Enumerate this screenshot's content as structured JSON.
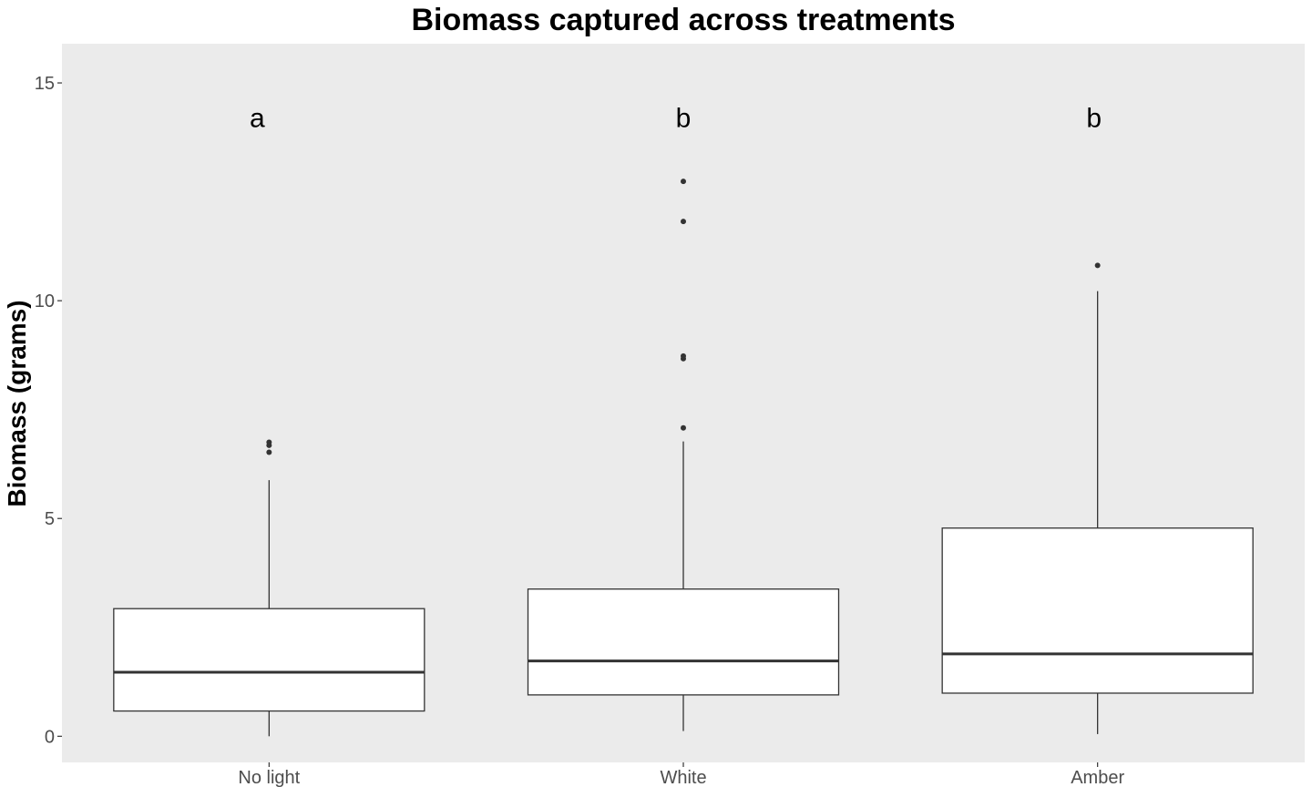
{
  "chart_data": {
    "type": "box",
    "title": "Biomass captured across treatments",
    "xlabel": "",
    "ylabel": "Biomass (grams)",
    "ylim": [
      -0.6,
      15.9
    ],
    "yticks": [
      0,
      5,
      10,
      15
    ],
    "grid": false,
    "panel_color": "#ebebeb",
    "box_fill": "#ffffff",
    "line_color": "#333333",
    "categories": [
      "No light",
      "White",
      "Amber"
    ],
    "boxes": [
      {
        "category": "No light",
        "whisker_low": 0.0,
        "q1": 0.58,
        "median": 1.47,
        "q3": 2.93,
        "whisker_high": 5.88,
        "outliers": [
          6.52,
          6.68,
          6.75
        ],
        "letter": "a"
      },
      {
        "category": "White",
        "whisker_low": 0.12,
        "q1": 0.95,
        "median": 1.73,
        "q3": 3.38,
        "whisker_high": 6.77,
        "outliers": [
          7.08,
          8.67,
          8.73,
          11.82,
          12.74
        ],
        "letter": "b"
      },
      {
        "category": "Amber",
        "whisker_low": 0.05,
        "q1": 0.99,
        "median": 1.89,
        "q3": 4.78,
        "whisker_high": 10.22,
        "outliers": [
          10.81
        ],
        "letter": "b"
      }
    ],
    "letter_y": 14.2
  }
}
